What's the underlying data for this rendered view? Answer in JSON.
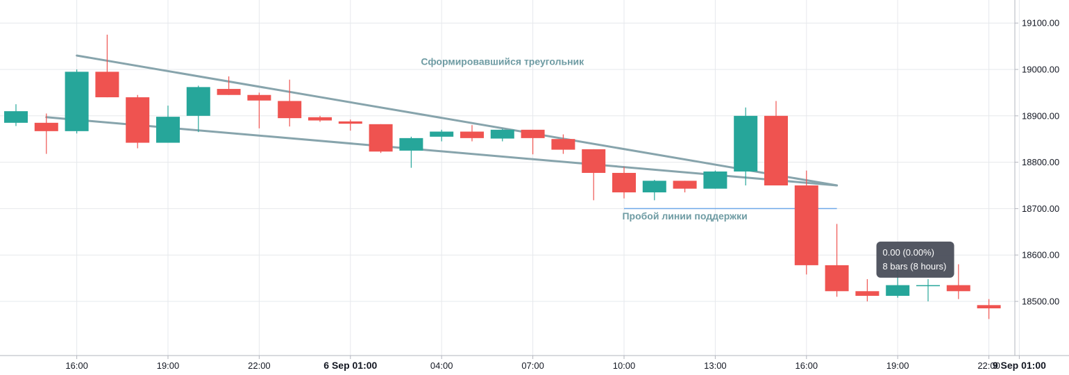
{
  "chart_data": {
    "type": "candlestick",
    "bar_interval": "1 hour",
    "candles": [
      {
        "o": 18885,
        "h": 18925,
        "l": 18878,
        "c": 18910
      },
      {
        "o": 18885,
        "h": 18905,
        "l": 18818,
        "c": 18867
      },
      {
        "o": 18867,
        "h": 19000,
        "l": 18862,
        "c": 18995
      },
      {
        "o": 18995,
        "h": 19075,
        "l": 18940,
        "c": 18940
      },
      {
        "o": 18940,
        "h": 18945,
        "l": 18830,
        "c": 18842
      },
      {
        "o": 18842,
        "h": 18922,
        "l": 18842,
        "c": 18898
      },
      {
        "o": 18900,
        "h": 18965,
        "l": 18865,
        "c": 18962
      },
      {
        "o": 18958,
        "h": 18985,
        "l": 18945,
        "c": 18945
      },
      {
        "o": 18945,
        "h": 18950,
        "l": 18873,
        "c": 18933
      },
      {
        "o": 18932,
        "h": 18978,
        "l": 18877,
        "c": 18895
      },
      {
        "o": 18897,
        "h": 18900,
        "l": 18887,
        "c": 18890
      },
      {
        "o": 18888,
        "h": 18892,
        "l": 18868,
        "c": 18883
      },
      {
        "o": 18882,
        "h": 18882,
        "l": 18820,
        "c": 18823
      },
      {
        "o": 18825,
        "h": 18855,
        "l": 18788,
        "c": 18852
      },
      {
        "o": 18855,
        "h": 18870,
        "l": 18845,
        "c": 18866
      },
      {
        "o": 18866,
        "h": 18880,
        "l": 18845,
        "c": 18852
      },
      {
        "o": 18851,
        "h": 18872,
        "l": 18845,
        "c": 18870
      },
      {
        "o": 18870,
        "h": 18870,
        "l": 18817,
        "c": 18852
      },
      {
        "o": 18850,
        "h": 18860,
        "l": 18818,
        "c": 18827
      },
      {
        "o": 18828,
        "h": 18828,
        "l": 18718,
        "c": 18777
      },
      {
        "o": 18777,
        "h": 18790,
        "l": 18722,
        "c": 18735
      },
      {
        "o": 18735,
        "h": 18762,
        "l": 18718,
        "c": 18760
      },
      {
        "o": 18760,
        "h": 18760,
        "l": 18735,
        "c": 18743
      },
      {
        "o": 18743,
        "h": 18782,
        "l": 18743,
        "c": 18780
      },
      {
        "o": 18780,
        "h": 18918,
        "l": 18750,
        "c": 18900
      },
      {
        "o": 18900,
        "h": 18932,
        "l": 18750,
        "c": 18750
      },
      {
        "o": 18750,
        "h": 18782,
        "l": 18558,
        "c": 18578
      },
      {
        "o": 18578,
        "h": 18667,
        "l": 18510,
        "c": 18522
      },
      {
        "o": 18522,
        "h": 18548,
        "l": 18500,
        "c": 18512
      },
      {
        "o": 18512,
        "h": 18588,
        "l": 18508,
        "c": 18535
      },
      {
        "o": 18535,
        "h": 18548,
        "l": 18500,
        "c": 18535
      },
      {
        "o": 18535,
        "h": 18580,
        "l": 18505,
        "c": 18522
      },
      {
        "o": 18492,
        "h": 18505,
        "l": 18462,
        "c": 18485
      }
    ],
    "xlabel": "",
    "ylabel": "",
    "ylim": [
      18400,
      19150
    ],
    "y_ticks": [
      {
        "value": 18500,
        "label": "18500.00"
      },
      {
        "value": 18600,
        "label": "18600.00"
      },
      {
        "value": 18700,
        "label": "18700.00"
      },
      {
        "value": 18800,
        "label": "18800.00"
      },
      {
        "value": 18900,
        "label": "18900.00"
      },
      {
        "value": 19000,
        "label": "19000.00"
      },
      {
        "value": 19100,
        "label": "19100.00"
      }
    ],
    "x_ticks": [
      {
        "index": 2,
        "label": "16:00",
        "bold": false
      },
      {
        "index": 5,
        "label": "19:00",
        "bold": false
      },
      {
        "index": 8,
        "label": "22:00",
        "bold": false
      },
      {
        "index": 11,
        "label": "6 Sep 01:00",
        "bold": true
      },
      {
        "index": 14,
        "label": "04:00",
        "bold": false
      },
      {
        "index": 17,
        "label": "07:00",
        "bold": false
      },
      {
        "index": 20,
        "label": "10:00",
        "bold": false
      },
      {
        "index": 23,
        "label": "13:00",
        "bold": false
      },
      {
        "index": 26,
        "label": "16:00",
        "bold": false
      },
      {
        "index": 29,
        "label": "19:00",
        "bold": false
      },
      {
        "index": 32,
        "label": "22:00",
        "bold": false
      },
      {
        "index": 33,
        "label": "9 Sep 01:00",
        "bold": true
      }
    ],
    "grid": true,
    "trendlines": [
      {
        "from": {
          "i": 2,
          "price": 19030
        },
        "to": {
          "i": 27,
          "price": 18750
        }
      },
      {
        "from": {
          "i": 1,
          "price": 18897
        },
        "to": {
          "i": 27,
          "price": 18750
        }
      }
    ],
    "support_line": {
      "price": 18700,
      "from_i": 20,
      "to_i": 27
    },
    "annotations": [
      {
        "text": "Сформировавшийся треугольник",
        "i": 16,
        "price": 19010
      },
      {
        "text": "Пробой линии поддержки",
        "i": 22,
        "price": 18677
      }
    ],
    "tooltip": {
      "line1": "0.00 (0.00%)",
      "line2": "8 bars (8 hours)",
      "i": 28.3,
      "price": 18629
    },
    "colors": {
      "up": "#26a69a",
      "down": "#ef5350",
      "trendline": "#87a4ac",
      "support": "#6fa8e8",
      "annotation": "#6e9ba3",
      "grid": "#e6e8ec",
      "axis": "#b2b5be",
      "tooltip_bg": "#4a4e5a"
    }
  }
}
